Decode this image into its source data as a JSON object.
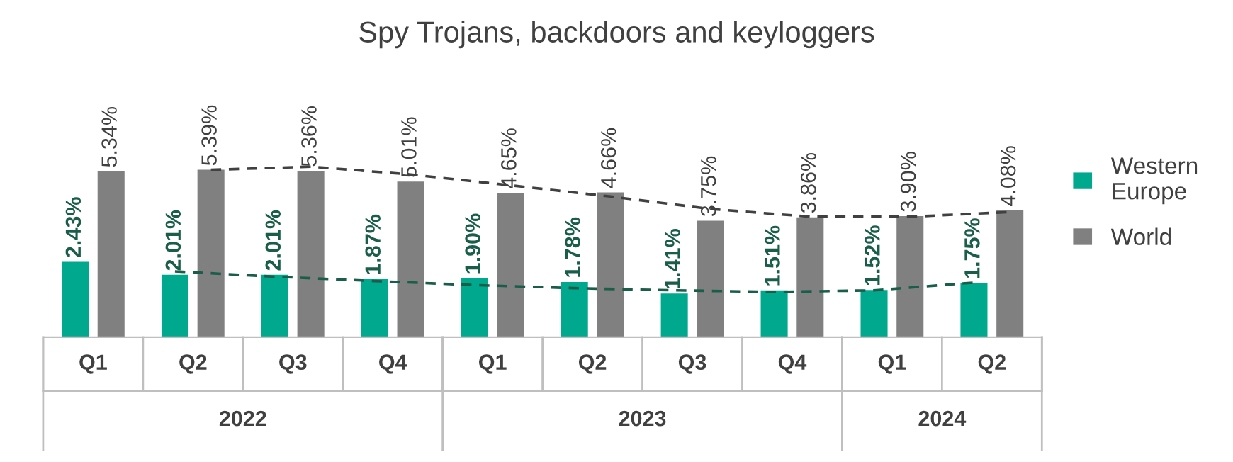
{
  "chart_data": {
    "type": "bar",
    "title": "Spy Trojans, backdoors and keyloggers",
    "categories": [
      "Q1",
      "Q2",
      "Q3",
      "Q4",
      "Q1",
      "Q2",
      "Q3",
      "Q4",
      "Q1",
      "Q2"
    ],
    "annotations": [
      "2022",
      "2023",
      "2024"
    ],
    "series": [
      {
        "name": "Western Europe",
        "color": "#00a88e",
        "values": [
          2.43,
          2.01,
          2.01,
          1.87,
          1.9,
          1.78,
          1.41,
          1.51,
          1.52,
          1.75
        ],
        "value_labels": [
          "2.43%",
          "2.01%",
          "2.01%",
          "1.87%",
          "1.90%",
          "1.78%",
          "1.41%",
          "1.51%",
          "1.52%",
          "1.75%"
        ]
      },
      {
        "name": "World",
        "color": "#808080",
        "values": [
          5.34,
          5.39,
          5.36,
          5.01,
          4.65,
          4.66,
          3.75,
          3.86,
          3.9,
          4.08
        ],
        "value_labels": [
          "5.34%",
          "5.39%",
          "5.36%",
          "5.01%",
          "4.65%",
          "4.66%",
          "3.75%",
          "3.86%",
          "3.90%",
          "4.08%"
        ]
      },
      {
        "type": "line",
        "color": "#1a5e4a",
        "line_style": "dashed",
        "values": [
          null,
          2.12,
          1.95,
          1.81,
          1.68,
          1.58,
          1.51,
          1.46,
          1.51,
          1.76
        ]
      },
      {
        "type": "line",
        "color": "#404040",
        "line_style": "dashed",
        "values": [
          null,
          5.39,
          5.49,
          5.24,
          4.89,
          4.53,
          4.13,
          3.88,
          3.88,
          4.03
        ]
      }
    ],
    "legend": "right"
  }
}
